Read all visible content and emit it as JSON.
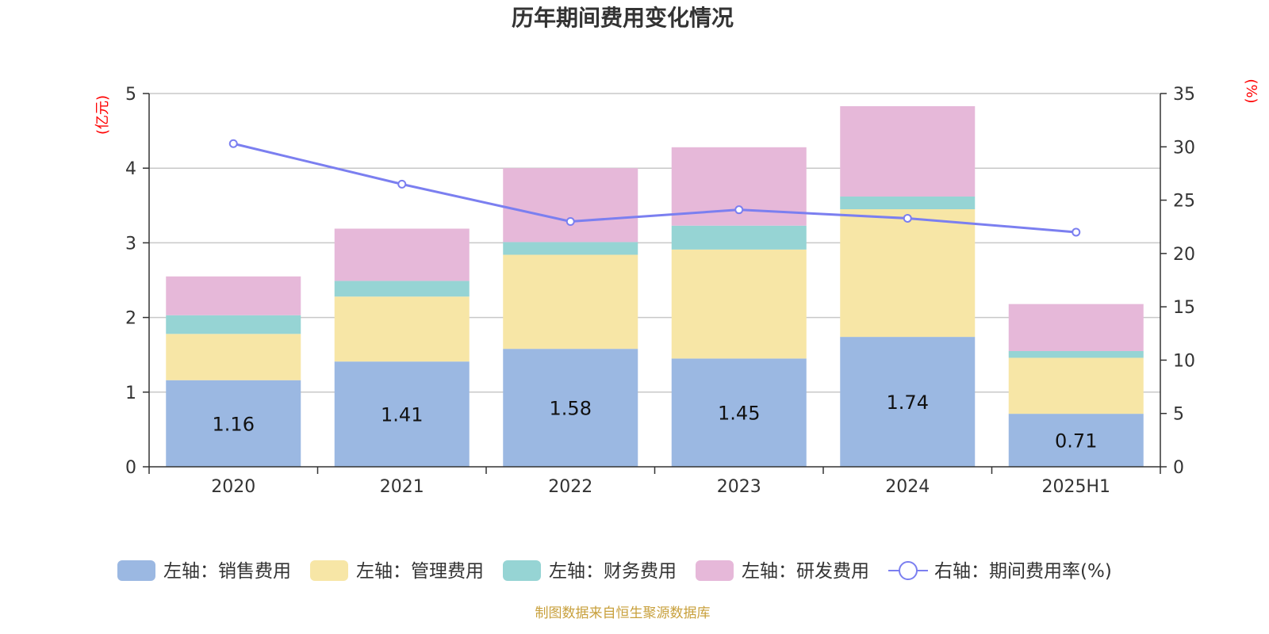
{
  "title": "历年期间费用变化情况",
  "left_unit": "(亿元)",
  "right_unit": "(%)",
  "source": "制图数据来自恒生聚源数据库",
  "colors": {
    "sales": "#9bb8e2",
    "admin": "#f7e6a6",
    "finance": "#96d4d4",
    "rd": "#e6b8d9",
    "rate": "#7b7ff0",
    "grid": "#c8c8c8",
    "axis": "#333333",
    "unit": "#ff0000",
    "source": "#c8a03c"
  },
  "chart_data": {
    "type": "bar",
    "stacked": true,
    "categories": [
      "2020",
      "2021",
      "2022",
      "2023",
      "2024",
      "2025H1"
    ],
    "y_left_ticks": [
      "0",
      "1",
      "2",
      "3",
      "4",
      "5"
    ],
    "y_right_ticks": [
      "0",
      "5",
      "10",
      "15",
      "20",
      "25",
      "30",
      "35"
    ],
    "ylim_left": [
      0,
      5
    ],
    "ylim_right": [
      0,
      35
    ],
    "grid": true,
    "legend_position": "bottom",
    "series": [
      {
        "key": "sales",
        "name": "左轴：销售费用",
        "axis": "left",
        "type": "bar",
        "values": [
          1.16,
          1.41,
          1.58,
          1.45,
          1.74,
          0.71
        ],
        "labels": [
          "1.16",
          "1.41",
          "1.58",
          "1.45",
          "1.74",
          "0.71"
        ]
      },
      {
        "key": "admin",
        "name": "左轴：管理费用",
        "axis": "left",
        "type": "bar",
        "values": [
          0.62,
          0.87,
          1.26,
          1.46,
          1.71,
          0.75
        ]
      },
      {
        "key": "finance",
        "name": "左轴：财务费用",
        "axis": "left",
        "type": "bar",
        "values": [
          0.25,
          0.21,
          0.17,
          0.32,
          0.17,
          0.09
        ]
      },
      {
        "key": "rd",
        "name": "左轴：研发费用",
        "axis": "left",
        "type": "bar",
        "values": [
          0.52,
          0.7,
          0.99,
          1.05,
          1.21,
          0.63
        ]
      },
      {
        "key": "rate",
        "name": "右轴：期间费用率(%)",
        "axis": "right",
        "type": "line",
        "values": [
          30.3,
          26.5,
          23.0,
          24.1,
          23.3,
          22.0
        ]
      }
    ]
  }
}
